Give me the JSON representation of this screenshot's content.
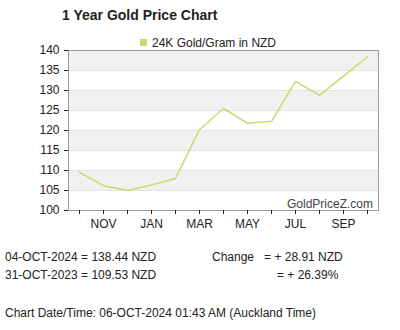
{
  "chart_data": {
    "type": "line",
    "title": "1 Year Gold Price Chart",
    "categories": [
      null,
      "NOV",
      null,
      "JAN",
      null,
      "MAR",
      null,
      "MAY",
      null,
      "JUL",
      null,
      "SEP",
      null
    ],
    "series": [
      {
        "name": "24K Gold/Gram in NZD",
        "color": "#c4dc6c",
        "values": [
          109.53,
          106.2,
          105.0,
          106.4,
          108.0,
          120.2,
          125.5,
          121.8,
          122.3,
          132.3,
          128.8,
          133.6,
          138.44
        ]
      }
    ],
    "ylim": [
      100,
      140
    ],
    "yticks": [
      100,
      105,
      110,
      115,
      120,
      125,
      130,
      135,
      140
    ],
    "grid": true,
    "legend": "top",
    "annotations": [
      "GoldPriceZ.com",
      "04-OCT-2024 = 138.44 NZD",
      "31-OCT-2023 = 109.53 NZD",
      "Change   = + 28.91 NZD",
      "= + 26.39%",
      "Chart Date/Time: 06-OCT-2024 01:43 AM (Auckland Time)"
    ]
  }
}
